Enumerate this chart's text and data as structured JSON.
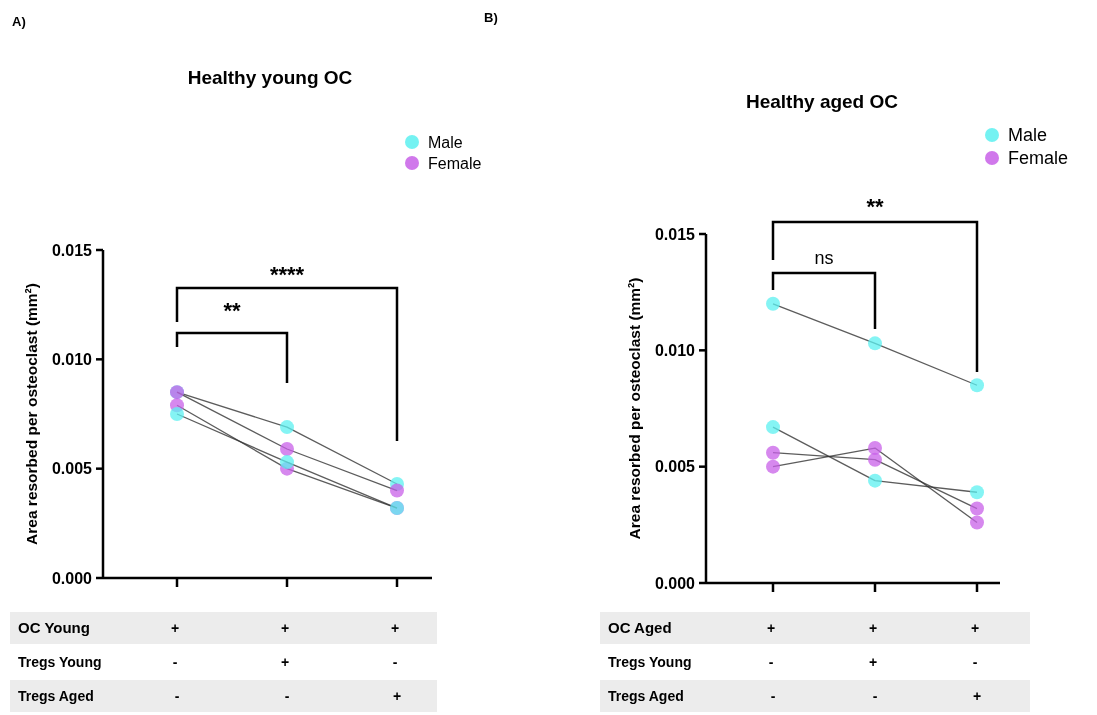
{
  "chart_data": [
    {
      "type": "line",
      "title": "Healthy young OC",
      "ylabel": "Area resorbed per osteoclast (mm²)",
      "categories": [
        "+\n-\n-",
        "+\n+\n-",
        "+\n-\n+"
      ],
      "ylim": [
        0,
        0.015
      ],
      "yticks": [
        {
          "value": 0,
          "label": "0.000"
        },
        {
          "value": 0.005,
          "label": "0.005"
        },
        {
          "value": 0.01,
          "label": "0.010"
        },
        {
          "value": 0.015,
          "label": "0.015"
        }
      ],
      "legend": "top right",
      "marker": "circle",
      "annotations": [
        "A)",
        "**",
        "****",
        "OC  Young",
        "Tregs Young",
        "Tregs Aged"
      ],
      "series": [
        {
          "name": "Male",
          "color": "#5cf0f0",
          "values": [
            0.0085,
            0.0069,
            0.0043
          ]
        },
        {
          "name": "Female",
          "color": "#c860e8",
          "values": [
            0.0085,
            0.0059,
            0.004
          ]
        },
        {
          "color": "#c860e8",
          "values": [
            0.0079,
            0.005,
            0.0032
          ]
        },
        {
          "color": "#5cf0f0",
          "values": [
            0.0075,
            0.0053,
            0.0032
          ]
        }
      ]
    },
    {
      "type": "line",
      "title": "Healthy aged OC",
      "ylabel": "Area resorbed per osteoclast (mm²)",
      "categories": [
        "+\n-\n-",
        "+\n+\n-",
        "+\n-\n+"
      ],
      "ylim": [
        0,
        0.015
      ],
      "yticks": [
        {
          "value": 0,
          "label": "0.000"
        },
        {
          "value": 0.005,
          "label": "0.005"
        },
        {
          "value": 0.01,
          "label": "0.010"
        },
        {
          "value": 0.015,
          "label": "0.015"
        }
      ],
      "legend": "top right",
      "marker": "circle",
      "annotations": [
        "B)",
        "ns",
        "**",
        "OC  Aged",
        "Tregs Young",
        "Tregs Aged"
      ],
      "series": [
        {
          "name": "Male",
          "color": "#5cf0f0",
          "values": [
            0.012,
            0.0103,
            0.0085
          ]
        },
        {
          "color": "#5cf0f0",
          "values": [
            0.0067,
            0.0044,
            0.0039
          ]
        },
        {
          "name": "Female",
          "color": "#c860e8",
          "values": [
            0.0056,
            0.0053,
            0.0032
          ]
        },
        {
          "color": "#c860e8",
          "values": [
            0.005,
            0.0058,
            0.0026
          ]
        }
      ]
    }
  ]
}
